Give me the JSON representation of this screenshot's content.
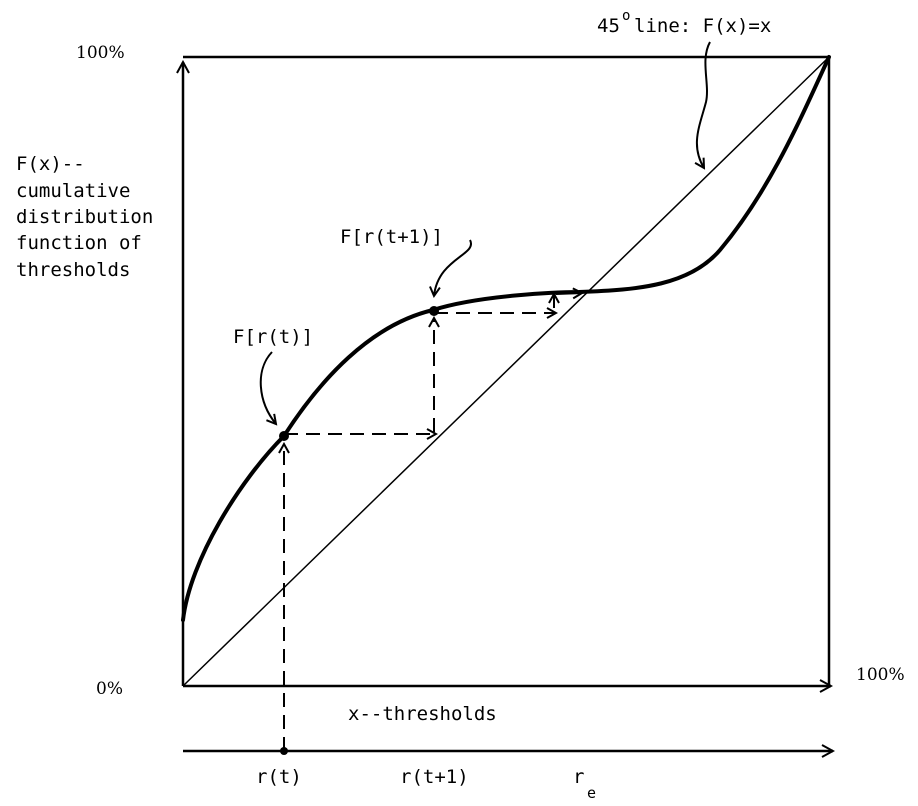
{
  "axes": {
    "y_top_label": "100%",
    "origin_label": "0%",
    "x_right_label": "100%",
    "x_axis_label": "x--thresholds"
  },
  "y_axis_label_lines": [
    "F(x)--",
    "cumulative",
    "distribution",
    "function of",
    "thresholds"
  ],
  "diagonal_label_prefix": "45",
  "diagonal_label_degree": "o",
  "diagonal_label_suffix": "line: F(x)=x",
  "point_labels": {
    "f_rt": "F[r(t)]",
    "f_rt1": "F[r(t+1)]"
  },
  "bottom_axis": {
    "rt": "r(t)",
    "rt1": "r(t+1)",
    "re_main": "r",
    "re_sub": "e"
  }
}
